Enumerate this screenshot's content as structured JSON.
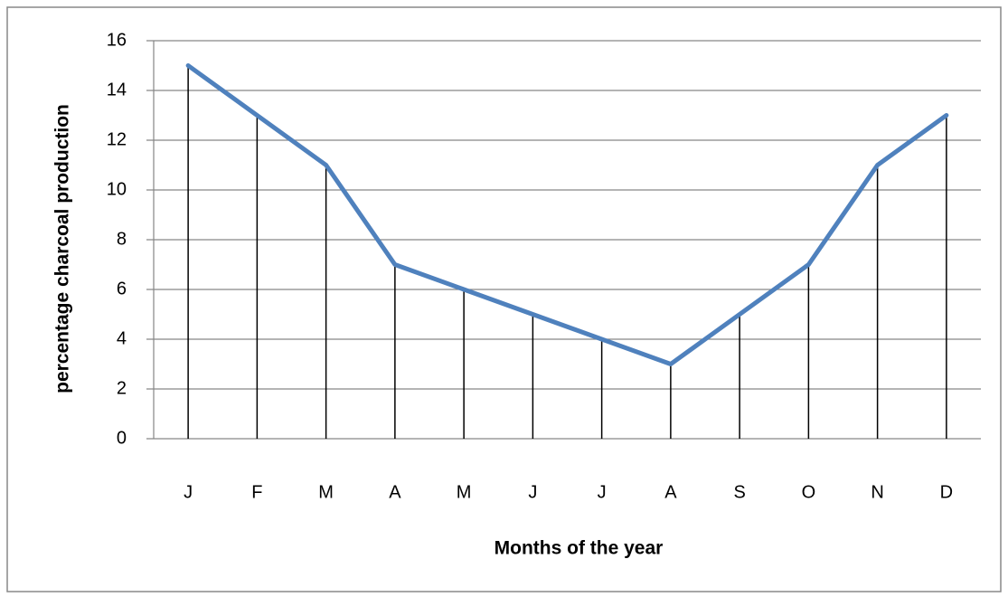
{
  "chart_data": {
    "type": "line",
    "x_label": "Months of the year",
    "y_label": "percentage charcoal  production",
    "categories": [
      "J",
      "F",
      "M",
      "A",
      "M",
      "J",
      "J",
      "A",
      "S",
      "O",
      "N",
      "D"
    ],
    "values": [
      15,
      13,
      11,
      7,
      6,
      5,
      4,
      3,
      5,
      7,
      11,
      13
    ],
    "color": "#4f81bd",
    "ylim": [
      0,
      16
    ],
    "yticks": [
      0,
      2,
      4,
      6,
      8,
      10,
      12,
      14,
      16
    ],
    "grid": true
  }
}
